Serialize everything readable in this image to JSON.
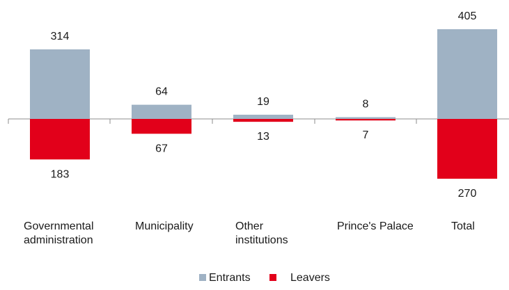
{
  "chart_data": {
    "type": "bar",
    "categories": [
      [
        "Governmental",
        "administration"
      ],
      [
        "Municipality"
      ],
      [
        "Other",
        "institutions"
      ],
      [
        "Prince's Palace"
      ],
      [
        "Total"
      ]
    ],
    "series": [
      {
        "name": "Entrants",
        "values": [
          314,
          64,
          19,
          8,
          405
        ],
        "color": "#9fb2c4"
      },
      {
        "name": "Leavers",
        "values": [
          -183,
          -67,
          -13,
          -7,
          -270
        ],
        "color": "#e2001a"
      }
    ],
    "data_labels": {
      "Entrants": [
        "314",
        "64",
        "19",
        "8",
        "405"
      ],
      "Leavers": [
        "183",
        "67",
        "13",
        "7",
        "270"
      ]
    },
    "ylim": [
      -300,
      450
    ],
    "grid": false,
    "legend_position": "bottom",
    "title": "",
    "xlabel": "",
    "ylabel": ""
  }
}
